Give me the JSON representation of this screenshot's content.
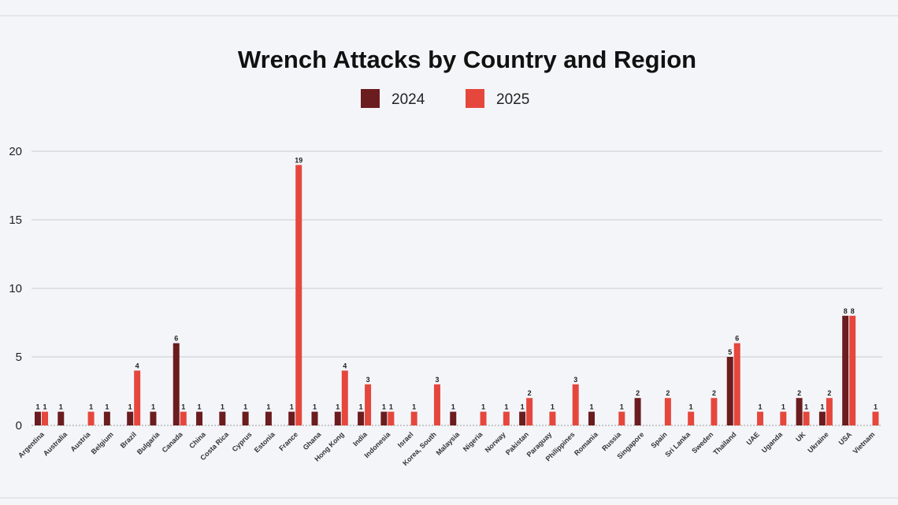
{
  "chart_data": {
    "type": "bar",
    "title": "Wrench Attacks by Country and Region",
    "xlabel": "",
    "ylabel": "",
    "ylim": [
      0,
      20
    ],
    "yticks": [
      0,
      5,
      10,
      15,
      20
    ],
    "grid": true,
    "legend_position": "top-center",
    "categories": [
      "Argentina",
      "Australia",
      "Austria",
      "Belgium",
      "Brazil",
      "Bulgaria",
      "Canada",
      "China",
      "Costa Rica",
      "Cyprus",
      "Estonia",
      "France",
      "Ghana",
      "Hong Kong",
      "India",
      "Indonesia",
      "Israel",
      "Korea, South",
      "Malaysia",
      "Nigeria",
      "Norway",
      "Pakistan",
      "Paraguay",
      "Philippines",
      "Romania",
      "Russia",
      "Singapore",
      "Spain",
      "Sri Lanka",
      "Sweden",
      "Thailand",
      "UAE",
      "Uganda",
      "UK",
      "Ukraine",
      "USA",
      "Vietnam"
    ],
    "series": [
      {
        "name": "2024",
        "color": "#6b1c1e",
        "values": [
          1,
          1,
          null,
          1,
          1,
          1,
          6,
          1,
          1,
          1,
          1,
          1,
          1,
          1,
          1,
          1,
          null,
          null,
          1,
          null,
          null,
          1,
          null,
          null,
          1,
          null,
          2,
          null,
          null,
          null,
          5,
          null,
          null,
          2,
          1,
          8,
          null
        ]
      },
      {
        "name": "2025",
        "color": "#e5473d",
        "values": [
          1,
          null,
          1,
          null,
          4,
          null,
          1,
          null,
          null,
          null,
          null,
          19,
          null,
          4,
          3,
          1,
          1,
          3,
          null,
          1,
          1,
          2,
          1,
          3,
          null,
          1,
          null,
          2,
          1,
          2,
          6,
          1,
          1,
          1,
          2,
          8,
          1
        ]
      }
    ]
  }
}
